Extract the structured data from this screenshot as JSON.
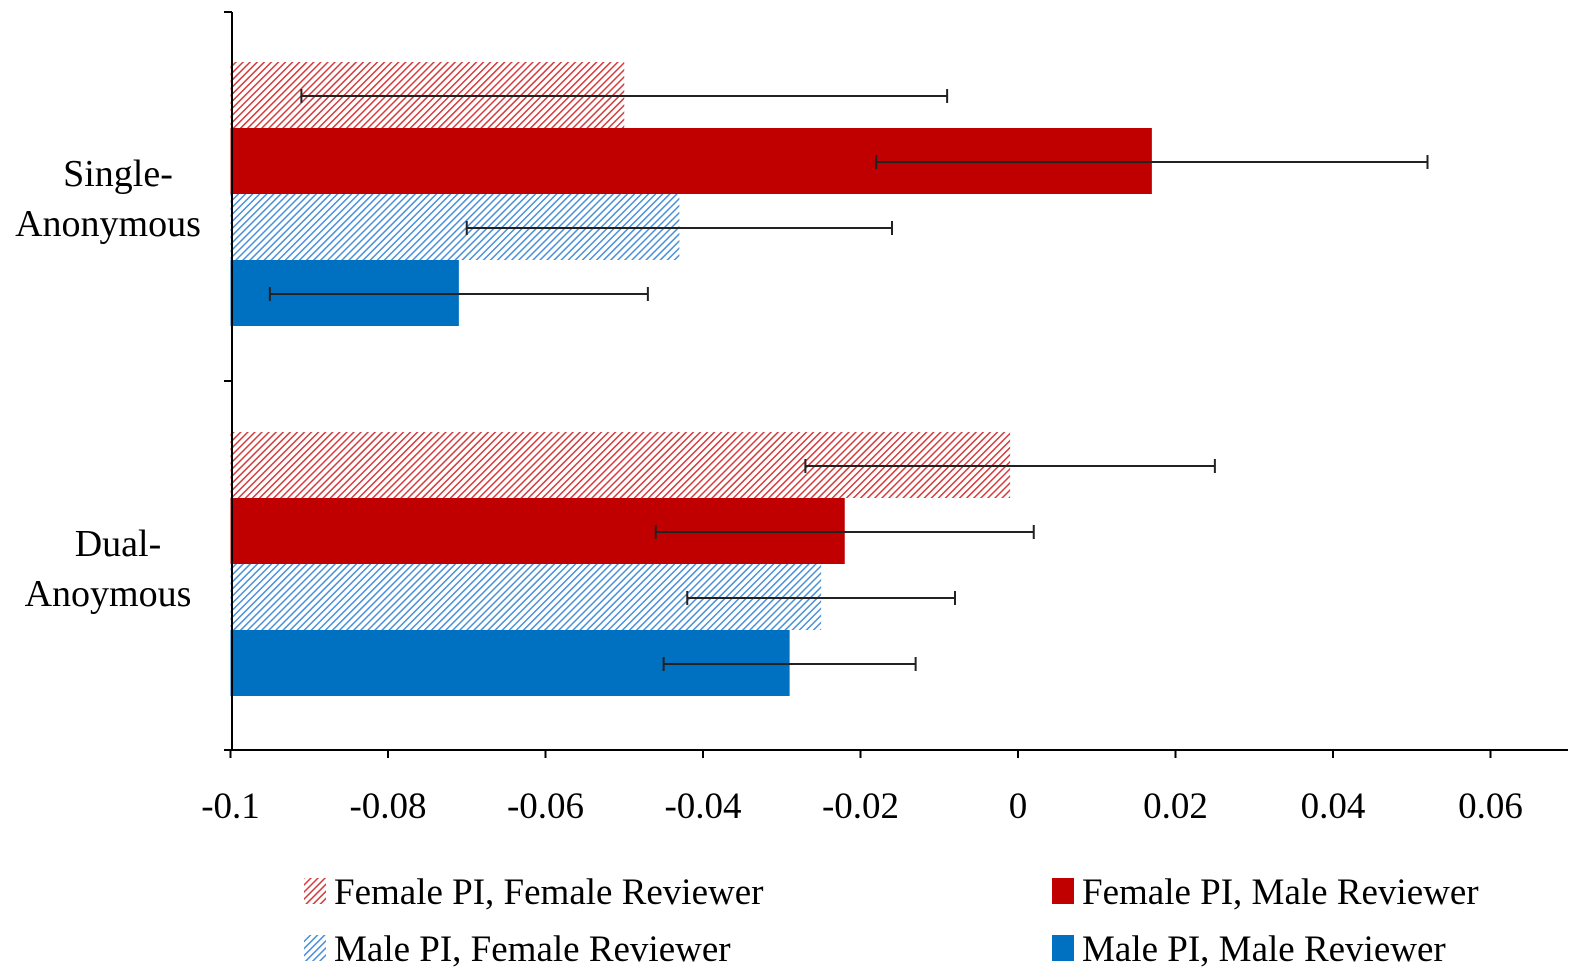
{
  "chart_data": {
    "type": "bar",
    "orientation": "horizontal",
    "title": "",
    "xlabel": "",
    "ylabel": "",
    "xlim": [
      -0.1,
      0.07
    ],
    "x_ticks": [
      "-0.1",
      "-0.08",
      "-0.06",
      "-0.04",
      "-0.02",
      "0",
      "0.02",
      "0.04",
      "0.06"
    ],
    "x_tick_values": [
      -0.1,
      -0.08,
      -0.06,
      -0.04,
      -0.02,
      0,
      0.02,
      0.04,
      0.06
    ],
    "grid": false,
    "legend_position": "bottom",
    "categories": [
      {
        "line1": "Single-",
        "line2": "Anonymous"
      },
      {
        "line1": "Dual-",
        "line2": "Anoymous"
      }
    ],
    "series": [
      {
        "name": "Female PI, Female Reviewer",
        "color": "#d63a3a",
        "pattern": "hatched",
        "values": [
          -0.05,
          -0.001
        ],
        "err_low": [
          -0.091,
          -0.027
        ],
        "err_high": [
          -0.009,
          0.025
        ]
      },
      {
        "name": "Female PI, Male Reviewer",
        "color": "#c00000",
        "pattern": "solid",
        "values": [
          0.017,
          -0.022
        ],
        "err_low": [
          -0.018,
          -0.046
        ],
        "err_high": [
          0.052,
          0.002
        ]
      },
      {
        "name": "Male PI, Female Reviewer",
        "color": "#4a90d9",
        "pattern": "hatched",
        "values": [
          -0.043,
          -0.025
        ],
        "err_low": [
          -0.07,
          -0.042
        ],
        "err_high": [
          -0.016,
          -0.008
        ]
      },
      {
        "name": "Male PI, Male Reviewer",
        "color": "#0070c0",
        "pattern": "solid",
        "values": [
          -0.071,
          -0.029
        ],
        "err_low": [
          -0.095,
          -0.045
        ],
        "err_high": [
          -0.047,
          -0.013
        ]
      }
    ]
  }
}
